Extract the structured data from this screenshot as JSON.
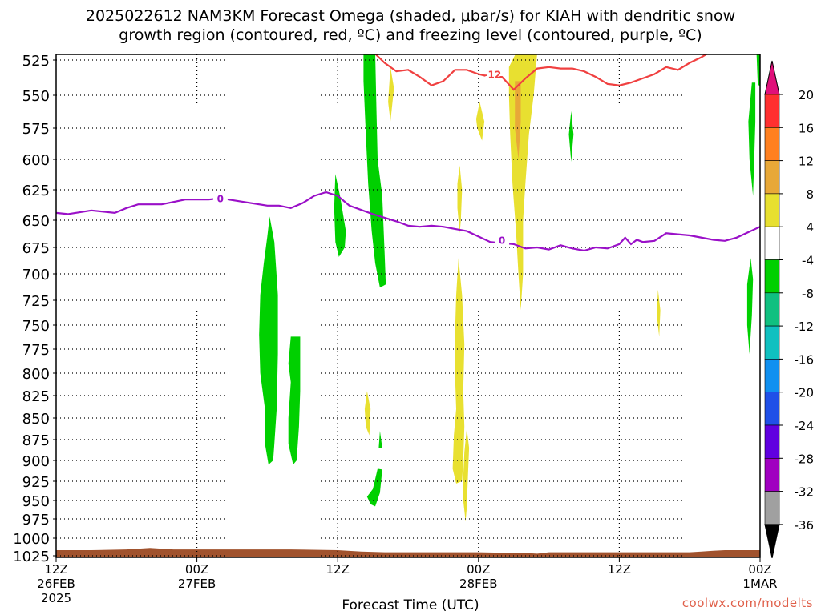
{
  "header": {
    "title_line1": "2025022612 NAM3KM Forecast Omega (shaded, μbar/s) for KIAH with dendritic snow",
    "title_line2": "growth region (contoured, red, ºC) and freezing level (contoured, purple, ºC)"
  },
  "footer": {
    "credit": "coolwx.com/modelts"
  },
  "chart_data": {
    "type": "heatmap",
    "xlabel": "Forecast Time (UTC)",
    "x_range_hours": [
      0,
      60
    ],
    "x_ticks": [
      {
        "h": 0,
        "lines": [
          "12Z",
          "26FEB",
          "2025"
        ]
      },
      {
        "h": 12,
        "lines": [
          "00Z",
          "27FEB"
        ]
      },
      {
        "h": 24,
        "lines": [
          "12Z"
        ]
      },
      {
        "h": 36,
        "lines": [
          "00Z",
          "28FEB"
        ]
      },
      {
        "h": 48,
        "lines": [
          "12Z"
        ]
      },
      {
        "h": 60,
        "lines": [
          "00Z",
          "1MAR"
        ]
      }
    ],
    "y_ticks_hpa": [
      525,
      550,
      575,
      600,
      625,
      650,
      675,
      700,
      725,
      750,
      775,
      800,
      825,
      850,
      875,
      900,
      925,
      950,
      975,
      1000,
      1025
    ],
    "y_range_hpa": [
      520,
      1030
    ],
    "grid": true,
    "colorbar": {
      "units": "μbar/s",
      "labels": [
        "20",
        "16",
        "12",
        "8",
        "4",
        "-4",
        "-8",
        "-12",
        "-16",
        "-20",
        "-24",
        "-28",
        "-32",
        "-36"
      ],
      "colors": [
        "#ff3030",
        "#ff8020",
        "#e8a838",
        "#e8e030",
        "#ffffff",
        "#00d000",
        "#10c080",
        "#10c0c0",
        "#1090f0",
        "#2050e8",
        "#6000e0",
        "#a000c0",
        "#a0a0a0"
      ],
      "top_arrow": "#e0107a",
      "bottom_arrow": "#000000"
    },
    "contours": [
      {
        "name": "freezing level",
        "label": "0",
        "color": "#9a10c8",
        "points": [
          [
            0,
            644
          ],
          [
            1,
            645
          ],
          [
            3,
            642
          ],
          [
            5,
            644
          ],
          [
            6,
            640
          ],
          [
            7,
            637
          ],
          [
            9,
            637
          ],
          [
            11,
            633
          ],
          [
            13,
            633
          ],
          [
            14,
            632
          ],
          [
            16,
            635
          ],
          [
            18,
            638
          ],
          [
            19,
            638
          ],
          [
            20,
            640
          ],
          [
            21,
            636
          ],
          [
            22,
            630
          ],
          [
            23,
            627
          ],
          [
            24,
            630
          ],
          [
            25,
            638
          ],
          [
            27,
            645
          ],
          [
            29,
            651
          ],
          [
            30,
            655
          ],
          [
            31,
            656
          ],
          [
            32,
            655
          ],
          [
            33,
            656
          ],
          [
            34,
            658
          ],
          [
            35,
            660
          ],
          [
            36,
            665
          ],
          [
            37,
            670
          ],
          [
            38,
            671
          ],
          [
            39,
            672
          ],
          [
            40,
            676
          ],
          [
            41,
            675
          ],
          [
            42,
            677
          ],
          [
            43,
            673
          ],
          [
            44,
            676
          ],
          [
            45,
            678
          ],
          [
            46,
            675
          ],
          [
            47,
            676
          ],
          [
            48,
            672
          ],
          [
            48.5,
            666
          ],
          [
            49,
            672
          ],
          [
            49.5,
            668
          ],
          [
            50,
            670
          ],
          [
            51,
            669
          ],
          [
            52,
            662
          ],
          [
            54,
            664
          ],
          [
            56,
            668
          ],
          [
            57,
            669
          ],
          [
            58,
            666
          ],
          [
            60,
            656
          ]
        ]
      },
      {
        "name": "dendritic growth zone",
        "label": "-12",
        "color": "#f04040",
        "points": [
          [
            27,
            519
          ],
          [
            28,
            527
          ],
          [
            29,
            533
          ],
          [
            30,
            532
          ],
          [
            31,
            537
          ],
          [
            32,
            543
          ],
          [
            33,
            540
          ],
          [
            34,
            532
          ],
          [
            35,
            532
          ],
          [
            36,
            535
          ],
          [
            37,
            537
          ],
          [
            38,
            537
          ],
          [
            39,
            546
          ],
          [
            40,
            538
          ],
          [
            41,
            531
          ],
          [
            42,
            530
          ],
          [
            43,
            531
          ],
          [
            44,
            531
          ],
          [
            45,
            533
          ],
          [
            46,
            537
          ],
          [
            47,
            542
          ],
          [
            48,
            543
          ],
          [
            49,
            541
          ],
          [
            50,
            538
          ],
          [
            51,
            535
          ],
          [
            52,
            530
          ],
          [
            53,
            532
          ],
          [
            54,
            527
          ],
          [
            55,
            523
          ],
          [
            56,
            518
          ]
        ]
      }
    ],
    "omega_regions": [
      {
        "value_range": "-8 to -4",
        "color": "#00d000",
        "poly": [
          [
            26.2,
            520
          ],
          [
            27.2,
            520
          ],
          [
            27.3,
            560
          ],
          [
            27.4,
            600
          ],
          [
            27.8,
            630
          ],
          [
            28.0,
            680
          ],
          [
            28.1,
            710
          ],
          [
            27.6,
            713
          ],
          [
            27.2,
            690
          ],
          [
            26.9,
            660
          ],
          [
            26.6,
            620
          ],
          [
            26.4,
            580
          ],
          [
            26.2,
            540
          ]
        ]
      },
      {
        "value_range": "-8 to -4",
        "color": "#00d000",
        "poly": [
          [
            23.8,
            612
          ],
          [
            24.2,
            630
          ],
          [
            24.7,
            660
          ],
          [
            24.6,
            675
          ],
          [
            24.1,
            684
          ],
          [
            23.8,
            670
          ],
          [
            23.7,
            640
          ]
        ]
      },
      {
        "value_range": "-8 to -4",
        "color": "#00d000",
        "poly": [
          [
            18.2,
            647
          ],
          [
            18.6,
            670
          ],
          [
            18.9,
            720
          ],
          [
            18.9,
            780
          ],
          [
            18.8,
            840
          ],
          [
            18.6,
            880
          ],
          [
            18.5,
            900
          ],
          [
            18.1,
            905
          ],
          [
            17.8,
            880
          ],
          [
            17.8,
            840
          ],
          [
            17.4,
            800
          ],
          [
            17.3,
            760
          ],
          [
            17.4,
            720
          ],
          [
            17.7,
            690
          ],
          [
            18.0,
            665
          ]
        ]
      },
      {
        "value_range": "-8 to -4",
        "color": "#00d000",
        "poly": [
          [
            20.0,
            762
          ],
          [
            20.8,
            762
          ],
          [
            20.8,
            820
          ],
          [
            20.7,
            860
          ],
          [
            20.5,
            900
          ],
          [
            20.2,
            905
          ],
          [
            19.8,
            880
          ],
          [
            19.8,
            850
          ],
          [
            20.0,
            810
          ],
          [
            19.8,
            790
          ]
        ]
      },
      {
        "value_range": "-8 to -4",
        "color": "#00d000",
        "poly": [
          [
            27.4,
            910
          ],
          [
            27.8,
            911
          ],
          [
            27.6,
            940
          ],
          [
            27.2,
            958
          ],
          [
            26.8,
            955
          ],
          [
            26.5,
            945
          ],
          [
            27.0,
            935
          ]
        ]
      },
      {
        "value_range": "-8 to -4",
        "color": "#00d000",
        "poly": [
          [
            27.6,
            865
          ],
          [
            27.8,
            885
          ],
          [
            27.5,
            885
          ]
        ]
      },
      {
        "value_range": "-8 to -4",
        "color": "#00d000",
        "poly": [
          [
            43.9,
            562
          ],
          [
            44.1,
            580
          ],
          [
            43.9,
            602
          ],
          [
            43.7,
            580
          ]
        ]
      },
      {
        "value_range": "-8 to -4",
        "color": "#00d000",
        "poly": [
          [
            59.3,
            541
          ],
          [
            59.6,
            541
          ],
          [
            59.6,
            570
          ],
          [
            59.5,
            600
          ],
          [
            59.4,
            630
          ],
          [
            59.1,
            600
          ],
          [
            59.0,
            570
          ]
        ]
      },
      {
        "value_range": "-8 to -4",
        "color": "#00d000",
        "poly": [
          [
            59.7,
            520
          ],
          [
            60,
            520
          ],
          [
            60,
            544
          ],
          [
            59.8,
            542
          ]
        ]
      },
      {
        "value_range": "-8 to -4",
        "color": "#00d000",
        "poly": [
          [
            59.2,
            685
          ],
          [
            59.4,
            705
          ],
          [
            59.3,
            740
          ],
          [
            59.1,
            780
          ],
          [
            58.9,
            750
          ],
          [
            58.9,
            710
          ]
        ]
      },
      {
        "value_range": "4 to 8",
        "color": "#e8e030",
        "poly": [
          [
            28.5,
            530
          ],
          [
            28.8,
            545
          ],
          [
            28.5,
            570
          ],
          [
            28.3,
            555
          ]
        ]
      },
      {
        "value_range": "4 to 8",
        "color": "#e8e030",
        "poly": [
          [
            39.2,
            520
          ],
          [
            41.0,
            520
          ],
          [
            40.7,
            550
          ],
          [
            40.3,
            580
          ],
          [
            40.0,
            620
          ],
          [
            39.8,
            650
          ],
          [
            39.8,
            700
          ],
          [
            39.6,
            735
          ],
          [
            39.4,
            700
          ],
          [
            39.2,
            660
          ],
          [
            38.9,
            620
          ],
          [
            38.7,
            580
          ],
          [
            38.6,
            550
          ],
          [
            38.6,
            530
          ]
        ]
      },
      {
        "value_range": "8 to 12",
        "color": "#e8a838",
        "poly": [
          [
            39.1,
            540
          ],
          [
            39.6,
            540
          ],
          [
            39.6,
            570
          ],
          [
            39.4,
            600
          ],
          [
            39.1,
            575
          ]
        ]
      },
      {
        "value_range": "4 to 8",
        "color": "#e8e030",
        "poly": [
          [
            36.1,
            555
          ],
          [
            36.5,
            570
          ],
          [
            36.3,
            585
          ],
          [
            35.9,
            575
          ],
          [
            35.8,
            568
          ]
        ]
      },
      {
        "value_range": "4 to 8",
        "color": "#e8e030",
        "poly": [
          [
            34.4,
            605
          ],
          [
            34.6,
            625
          ],
          [
            34.5,
            650
          ],
          [
            34.4,
            662
          ],
          [
            34.2,
            640
          ],
          [
            34.2,
            620
          ]
        ]
      },
      {
        "value_range": "4 to 8",
        "color": "#e8e030",
        "poly": [
          [
            34.3,
            685
          ],
          [
            34.6,
            720
          ],
          [
            34.8,
            770
          ],
          [
            34.7,
            820
          ],
          [
            34.8,
            860
          ],
          [
            34.7,
            900
          ],
          [
            34.6,
            925
          ],
          [
            34.1,
            928
          ],
          [
            33.8,
            910
          ],
          [
            33.9,
            870
          ],
          [
            34.1,
            840
          ],
          [
            34.0,
            800
          ],
          [
            34.0,
            760
          ],
          [
            34.1,
            720
          ]
        ]
      },
      {
        "value_range": "4 to 8",
        "color": "#e8e030",
        "poly": [
          [
            35.0,
            862
          ],
          [
            35.2,
            885
          ],
          [
            35.1,
            920
          ],
          [
            35.0,
            960
          ],
          [
            34.9,
            978
          ],
          [
            34.7,
            950
          ],
          [
            34.7,
            920
          ],
          [
            34.8,
            890
          ]
        ]
      },
      {
        "value_range": "4 to 8",
        "color": "#e8e030",
        "poly": [
          [
            26.5,
            820
          ],
          [
            26.8,
            840
          ],
          [
            26.7,
            870
          ],
          [
            26.4,
            860
          ],
          [
            26.3,
            840
          ]
        ]
      },
      {
        "value_range": "4 to 8",
        "color": "#e8e030",
        "poly": [
          [
            51.3,
            715
          ],
          [
            51.5,
            735
          ],
          [
            51.4,
            762
          ],
          [
            51.2,
            740
          ]
        ]
      }
    ],
    "terrain_color": "#a0522d",
    "terrain_top_hpa": [
      [
        0,
        1017
      ],
      [
        3,
        1017
      ],
      [
        6,
        1016
      ],
      [
        8,
        1014
      ],
      [
        10,
        1016
      ],
      [
        12,
        1016
      ],
      [
        14,
        1016
      ],
      [
        20,
        1016
      ],
      [
        24,
        1017
      ],
      [
        26,
        1019
      ],
      [
        28,
        1020
      ],
      [
        35,
        1020
      ],
      [
        36,
        1020
      ],
      [
        39,
        1021
      ],
      [
        40,
        1021
      ],
      [
        41,
        1022
      ],
      [
        42,
        1020
      ],
      [
        48,
        1020
      ],
      [
        54,
        1020
      ],
      [
        55,
        1019
      ],
      [
        56,
        1018
      ],
      [
        57,
        1017
      ],
      [
        60,
        1017
      ]
    ]
  }
}
